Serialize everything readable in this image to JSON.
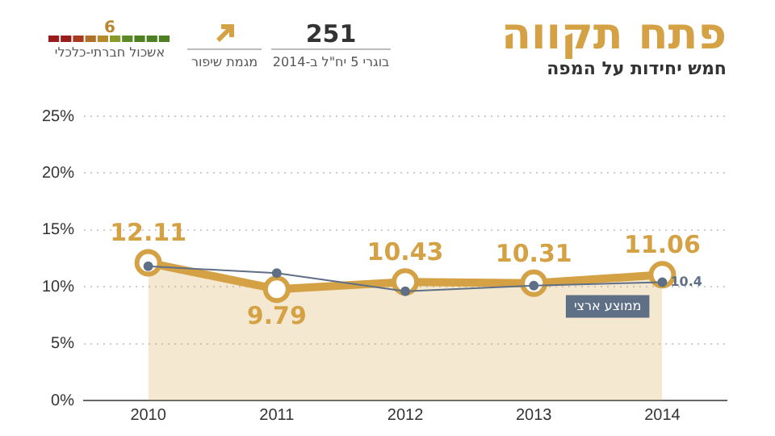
{
  "chart_data": {
    "type": "line",
    "title": "פתח תקווה",
    "subtitle": "חמש יחידות על המפה",
    "annotations": [
      "251",
      "בוגרי 5 יח\"ל ב-2014",
      "מגמת שיפור",
      "6",
      "אשכול חברתי-כלכלי"
    ],
    "categories": [
      "2010",
      "2011",
      "2012",
      "2013",
      "2014"
    ],
    "series": [
      {
        "type": "area",
        "color": "#d4a245",
        "values": [
          12.11,
          9.79,
          10.43,
          10.31,
          11.06
        ],
        "value_labels": [
          "12.11",
          "9.79",
          "10.43",
          "10.31",
          "11.06"
        ]
      },
      {
        "name": "ממוצע ארצי",
        "color": "#5f6f86",
        "values": [
          11.8,
          11.2,
          9.6,
          10.1,
          10.4
        ],
        "value_labels": [
          null,
          null,
          null,
          null,
          "10.4"
        ]
      }
    ],
    "ylim": [
      0,
      25
    ],
    "yticks": [
      {
        "value": 0,
        "label": "0%"
      },
      {
        "value": 5,
        "label": "5%"
      },
      {
        "value": 10,
        "label": "10%"
      },
      {
        "value": 15,
        "label": "15%"
      },
      {
        "value": 20,
        "label": "20%"
      },
      {
        "value": 25,
        "label": "25%"
      }
    ],
    "grid": "y",
    "legend": false,
    "marker": "circle"
  }
}
